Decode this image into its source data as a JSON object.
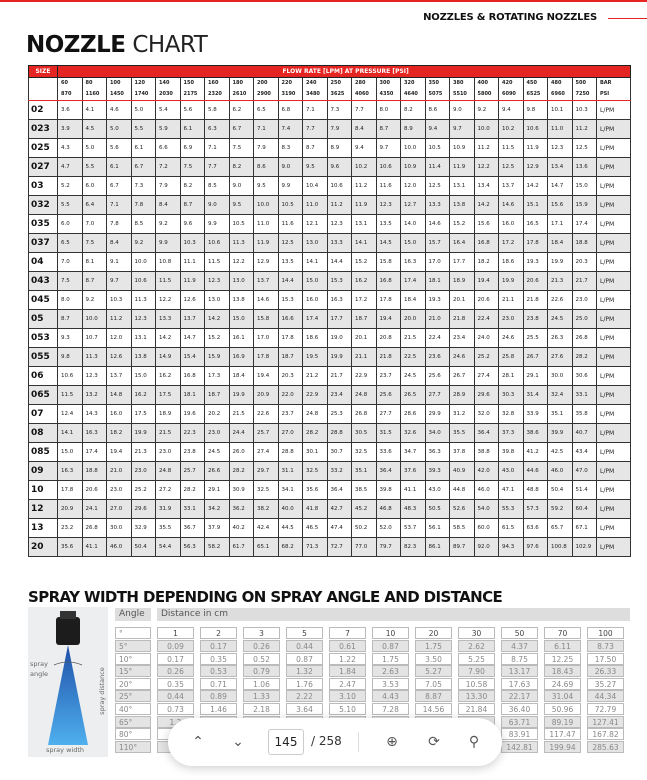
{
  "header": {
    "section": "NOZZLES & ROTATING NOZZLES",
    "title_bold": "NOZZLE",
    "title_light": "CHART"
  },
  "colors": {
    "brand_red": "#e52521",
    "row_alt": "#e6e6e6"
  },
  "nozzle_table": {
    "size_label": "SIZE",
    "flow_label": "FLOW RATE [LPM] AT PRESSURE [PSI]",
    "bar": [
      "60",
      "80",
      "100",
      "120",
      "140",
      "150",
      "160",
      "180",
      "200",
      "220",
      "240",
      "250",
      "280",
      "300",
      "320",
      "350",
      "380",
      "400",
      "420",
      "450",
      "480",
      "500"
    ],
    "psi": [
      "870",
      "1160",
      "1450",
      "1740",
      "2030",
      "2175",
      "2320",
      "2610",
      "2900",
      "3190",
      "3480",
      "3625",
      "4060",
      "4350",
      "4640",
      "5075",
      "5510",
      "5800",
      "6090",
      "6525",
      "6960",
      "7250"
    ],
    "unit_bar": "BAR",
    "unit_psi": "PSI",
    "rows": [
      {
        "size": "02",
        "unit": "L/PM",
        "values": [
          "3.6",
          "4.1",
          "4.6",
          "5.0",
          "5.4",
          "5.6",
          "5.8",
          "6.2",
          "6.5",
          "6.8",
          "7.1",
          "7.3",
          "7.7",
          "8.0",
          "8.2",
          "8.6",
          "9.0",
          "9.2",
          "9.4",
          "9.8",
          "10.1",
          "10.3"
        ]
      },
      {
        "size": "023",
        "unit": "L/PM",
        "values": [
          "3.9",
          "4.5",
          "5.0",
          "5.5",
          "5.9",
          "6.1",
          "6.3",
          "6.7",
          "7.1",
          "7.4",
          "7.7",
          "7.9",
          "8.4",
          "8.7",
          "8.9",
          "9.4",
          "9.7",
          "10.0",
          "10.2",
          "10.6",
          "11.0",
          "11.2"
        ]
      },
      {
        "size": "025",
        "unit": "L/PM",
        "values": [
          "4.3",
          "5.0",
          "5.6",
          "6.1",
          "6.6",
          "6.9",
          "7.1",
          "7.5",
          "7.9",
          "8.3",
          "8.7",
          "8.9",
          "9.4",
          "9.7",
          "10.0",
          "10.5",
          "10.9",
          "11.2",
          "11.5",
          "11.9",
          "12.3",
          "12.5"
        ]
      },
      {
        "size": "027",
        "unit": "L/PM",
        "values": [
          "4.7",
          "5.5",
          "6.1",
          "6.7",
          "7.2",
          "7.5",
          "7.7",
          "8.2",
          "8.6",
          "9.0",
          "9.5",
          "9.6",
          "10.2",
          "10.6",
          "10.9",
          "11.4",
          "11.9",
          "12.2",
          "12.5",
          "12.9",
          "13.4",
          "13.6"
        ]
      },
      {
        "size": "03",
        "unit": "L/PM",
        "values": [
          "5.2",
          "6.0",
          "6.7",
          "7.3",
          "7.9",
          "8.2",
          "8.5",
          "9.0",
          "9.5",
          "9.9",
          "10.4",
          "10.6",
          "11.2",
          "11.6",
          "12.0",
          "12.5",
          "13.1",
          "13.4",
          "13.7",
          "14.2",
          "14.7",
          "15.0"
        ]
      },
      {
        "size": "032",
        "unit": "L/PM",
        "values": [
          "5.5",
          "6.4",
          "7.1",
          "7.8",
          "8.4",
          "8.7",
          "9.0",
          "9.5",
          "10.0",
          "10.5",
          "11.0",
          "11.2",
          "11.9",
          "12.3",
          "12.7",
          "13.3",
          "13.8",
          "14.2",
          "14.6",
          "15.1",
          "15.6",
          "15.9"
        ]
      },
      {
        "size": "035",
        "unit": "L/PM",
        "values": [
          "6.0",
          "7.0",
          "7.8",
          "8.5",
          "9.2",
          "9.6",
          "9.9",
          "10.5",
          "11.0",
          "11.6",
          "12.1",
          "12.3",
          "13.1",
          "13.5",
          "14.0",
          "14.6",
          "15.2",
          "15.6",
          "16.0",
          "16.5",
          "17.1",
          "17.4"
        ]
      },
      {
        "size": "037",
        "unit": "L/PM",
        "values": [
          "6.5",
          "7.5",
          "8.4",
          "9.2",
          "9.9",
          "10.3",
          "10.6",
          "11.3",
          "11.9",
          "12.5",
          "13.0",
          "13.3",
          "14.1",
          "14.5",
          "15.0",
          "15.7",
          "16.4",
          "16.8",
          "17.2",
          "17.8",
          "18.4",
          "18.8"
        ]
      },
      {
        "size": "04",
        "unit": "L/PM",
        "values": [
          "7.0",
          "8.1",
          "9.1",
          "10.0",
          "10.8",
          "11.1",
          "11.5",
          "12.2",
          "12.9",
          "13.5",
          "14.1",
          "14.4",
          "15.2",
          "15.8",
          "16.3",
          "17.0",
          "17.7",
          "18.2",
          "18.6",
          "19.3",
          "19.9",
          "20.3"
        ]
      },
      {
        "size": "043",
        "unit": "L/PM",
        "values": [
          "7.5",
          "8.7",
          "9.7",
          "10.6",
          "11.5",
          "11.9",
          "12.3",
          "13.0",
          "13.7",
          "14.4",
          "15.0",
          "15.3",
          "16.2",
          "16.8",
          "17.4",
          "18.1",
          "18.9",
          "19.4",
          "19.9",
          "20.6",
          "21.3",
          "21.7"
        ]
      },
      {
        "size": "045",
        "unit": "L/PM",
        "values": [
          "8.0",
          "9.2",
          "10.3",
          "11.3",
          "12.2",
          "12.6",
          "13.0",
          "13.8",
          "14.6",
          "15.3",
          "16.0",
          "16.3",
          "17.2",
          "17.8",
          "18.4",
          "19.3",
          "20.1",
          "20.6",
          "21.1",
          "21.8",
          "22.6",
          "23.0"
        ]
      },
      {
        "size": "05",
        "unit": "L/PM",
        "values": [
          "8.7",
          "10.0",
          "11.2",
          "12.3",
          "13.3",
          "13.7",
          "14.2",
          "15.0",
          "15.8",
          "16.6",
          "17.4",
          "17.7",
          "18.7",
          "19.4",
          "20.0",
          "21.0",
          "21.8",
          "22.4",
          "23.0",
          "23.8",
          "24.5",
          "25.0"
        ]
      },
      {
        "size": "053",
        "unit": "L/PM",
        "values": [
          "9.3",
          "10.7",
          "12.0",
          "13.1",
          "14.2",
          "14.7",
          "15.2",
          "16.1",
          "17.0",
          "17.8",
          "18.6",
          "19.0",
          "20.1",
          "20.8",
          "21.5",
          "22.4",
          "23.4",
          "24.0",
          "24.6",
          "25.5",
          "26.3",
          "26.8"
        ]
      },
      {
        "size": "055",
        "unit": "L/PM",
        "values": [
          "9.8",
          "11.3",
          "12.6",
          "13.8",
          "14.9",
          "15.4",
          "15.9",
          "16.9",
          "17.8",
          "18.7",
          "19.5",
          "19.9",
          "21.1",
          "21.8",
          "22.5",
          "23.6",
          "24.6",
          "25.2",
          "25.8",
          "26.7",
          "27.6",
          "28.2"
        ]
      },
      {
        "size": "06",
        "unit": "L/PM",
        "values": [
          "10.6",
          "12.3",
          "13.7",
          "15.0",
          "16.2",
          "16.8",
          "17.3",
          "18.4",
          "19.4",
          "20.3",
          "21.2",
          "21.7",
          "22.9",
          "23.7",
          "24.5",
          "25.6",
          "26.7",
          "27.4",
          "28.1",
          "29.1",
          "30.0",
          "30.6"
        ]
      },
      {
        "size": "065",
        "unit": "L/PM",
        "values": [
          "11.5",
          "13.2",
          "14.8",
          "16.2",
          "17.5",
          "18.1",
          "18.7",
          "19.9",
          "20.9",
          "22.0",
          "22.9",
          "23.4",
          "24.8",
          "25.6",
          "26.5",
          "27.7",
          "28.9",
          "29.6",
          "30.3",
          "31.4",
          "32.4",
          "33.1"
        ]
      },
      {
        "size": "07",
        "unit": "L/PM",
        "values": [
          "12.4",
          "14.3",
          "16.0",
          "17.5",
          "18.9",
          "19.6",
          "20.2",
          "21.5",
          "22.6",
          "23.7",
          "24.8",
          "25.3",
          "26.8",
          "27.7",
          "28.6",
          "29.9",
          "31.2",
          "32.0",
          "32.8",
          "33.9",
          "35.1",
          "35.8"
        ]
      },
      {
        "size": "08",
        "unit": "L/PM",
        "values": [
          "14.1",
          "16.3",
          "18.2",
          "19.9",
          "21.5",
          "22.3",
          "23.0",
          "24.4",
          "25.7",
          "27.0",
          "28.2",
          "28.8",
          "30.5",
          "31.5",
          "32.6",
          "34.0",
          "35.5",
          "36.4",
          "37.3",
          "38.6",
          "39.9",
          "40.7"
        ]
      },
      {
        "size": "085",
        "unit": "L/PM",
        "values": [
          "15.0",
          "17.4",
          "19.4",
          "21.3",
          "23.0",
          "23.8",
          "24.5",
          "26.0",
          "27.4",
          "28.8",
          "30.1",
          "30.7",
          "32.5",
          "33.6",
          "34.7",
          "36.3",
          "37.8",
          "38.8",
          "39.8",
          "41.2",
          "42.5",
          "43.4"
        ]
      },
      {
        "size": "09",
        "unit": "L/PM",
        "values": [
          "16.3",
          "18.8",
          "21.0",
          "23.0",
          "24.8",
          "25.7",
          "26.6",
          "28.2",
          "29.7",
          "31.1",
          "32.5",
          "33.2",
          "35.1",
          "36.4",
          "37.6",
          "39.3",
          "40.9",
          "42.0",
          "43.0",
          "44.6",
          "46.0",
          "47.0"
        ]
      },
      {
        "size": "10",
        "unit": "L/PM",
        "values": [
          "17.8",
          "20.6",
          "23.0",
          "25.2",
          "27.2",
          "28.2",
          "29.1",
          "30.9",
          "32.5",
          "34.1",
          "35.6",
          "36.4",
          "38.5",
          "39.8",
          "41.1",
          "43.0",
          "44.8",
          "46.0",
          "47.1",
          "48.8",
          "50.4",
          "51.4"
        ]
      },
      {
        "size": "12",
        "unit": "L/PM",
        "values": [
          "20.9",
          "24.1",
          "27.0",
          "29.6",
          "31.9",
          "33.1",
          "34.2",
          "36.2",
          "38.2",
          "40.0",
          "41.8",
          "42.7",
          "45.2",
          "46.8",
          "48.3",
          "50.5",
          "52.6",
          "54.0",
          "55.3",
          "57.3",
          "59.2",
          "60.4"
        ]
      },
      {
        "size": "13",
        "unit": "L/PM",
        "values": [
          "23.2",
          "26.8",
          "30.0",
          "32.9",
          "35.5",
          "36.7",
          "37.9",
          "40.2",
          "42.4",
          "44.5",
          "46.5",
          "47.4",
          "50.2",
          "52.0",
          "53.7",
          "56.1",
          "58.5",
          "60.0",
          "61.5",
          "63.6",
          "65.7",
          "67.1"
        ]
      },
      {
        "size": "20",
        "unit": "L/PM",
        "values": [
          "35.6",
          "41.1",
          "46.0",
          "50.4",
          "54.4",
          "56.3",
          "58.2",
          "61.7",
          "65.1",
          "68.2",
          "71.3",
          "72.7",
          "77.0",
          "79.7",
          "82.3",
          "86.1",
          "89.7",
          "92.0",
          "94.3",
          "97.6",
          "100.8",
          "102.9"
        ]
      }
    ]
  },
  "spray": {
    "title": "SPRAY WIDTH DEPENDING ON SPRAY ANGLE AND DISTANCE",
    "diagram_labels": {
      "angle": "spray angle",
      "distance": "spray distance",
      "width": "spray width"
    },
    "angle_header": "Angle",
    "distance_header": "Distance in cm",
    "degree_symbol": "°",
    "distances": [
      "1",
      "2",
      "3",
      "5",
      "7",
      "10",
      "20",
      "30",
      "50",
      "70",
      "100"
    ],
    "rows": [
      {
        "angle": "5°",
        "values": [
          "0.09",
          "0.17",
          "0.26",
          "0.44",
          "0.61",
          "0.87",
          "1.75",
          "2.62",
          "4.37",
          "6.11",
          "8.73"
        ]
      },
      {
        "angle": "10°",
        "values": [
          "0.17",
          "0.35",
          "0.52",
          "0.87",
          "1.22",
          "1.75",
          "3.50",
          "5.25",
          "8.75",
          "12.25",
          "17.50"
        ]
      },
      {
        "angle": "15°",
        "values": [
          "0.26",
          "0.53",
          "0.79",
          "1.32",
          "1.84",
          "2.63",
          "5.27",
          "7.90",
          "13.17",
          "18.43",
          "26.33"
        ]
      },
      {
        "angle": "20°",
        "values": [
          "0.35",
          "0.71",
          "1.06",
          "1.76",
          "2.47",
          "3.53",
          "7.05",
          "10.58",
          "17.63",
          "24.69",
          "35.27"
        ]
      },
      {
        "angle": "25°",
        "values": [
          "0.44",
          "0.89",
          "1.33",
          "2.22",
          "3.10",
          "4.43",
          "8.87",
          "13.30",
          "22.17",
          "31.04",
          "44.34"
        ]
      },
      {
        "angle": "40°",
        "values": [
          "0.73",
          "1.46",
          "2.18",
          "3.64",
          "5.10",
          "7.28",
          "14.56",
          "21.84",
          "36.40",
          "50.96",
          "72.79"
        ]
      },
      {
        "angle": "65°",
        "values": [
          "1.2",
          "",
          "",
          "",
          "",
          "",
          "",
          "",
          "63.71",
          "89.19",
          "127.41"
        ]
      },
      {
        "angle": "80°",
        "values": [
          "",
          "",
          "",
          "",
          "",
          "",
          "",
          "",
          "83.91",
          "117.47",
          "167.82"
        ]
      },
      {
        "angle": "110°",
        "values": [
          "",
          "",
          "",
          "",
          "",
          "",
          "",
          "",
          "142.81",
          "199.94",
          "285.63"
        ]
      }
    ]
  },
  "viewer": {
    "page": "145",
    "total": "/ 258",
    "icons": [
      "chevron-up",
      "chevron-down",
      "zoom-in",
      "rotate",
      "search"
    ]
  }
}
